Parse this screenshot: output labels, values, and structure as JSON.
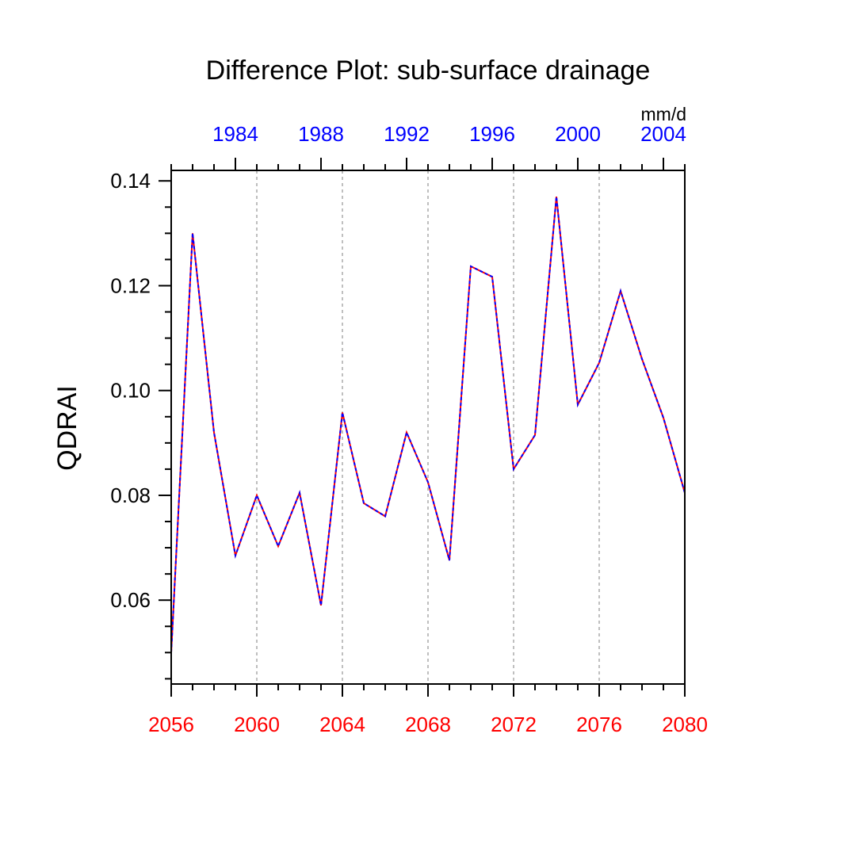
{
  "chart_data": {
    "type": "line",
    "title": "Difference Plot: sub-surface drainage",
    "ylabel": "QDRAI",
    "units": "mm/d",
    "bottom_axis": {
      "ticks": [
        2056,
        2060,
        2064,
        2068,
        2072,
        2076,
        2080
      ],
      "range": [
        2056,
        2080
      ],
      "color": "#ff0000"
    },
    "top_axis": {
      "ticks": [
        1984,
        1988,
        1992,
        1996,
        2000,
        2004
      ],
      "range": [
        1981,
        2005
      ],
      "color": "#0000ff"
    },
    "y_axis": {
      "ticks": [
        "0.06",
        "0.08",
        "0.10",
        "0.12",
        "0.14"
      ],
      "tick_values": [
        0.06,
        0.08,
        0.1,
        0.12,
        0.14
      ],
      "range": [
        0.044,
        0.142
      ]
    },
    "grid": "dashed vertical lines at bottom major ticks",
    "series": [
      {
        "color": "#ff0000",
        "x": [
          2056,
          2057,
          2058,
          2059,
          2060,
          2061,
          2062,
          2063,
          2064,
          2065,
          2066,
          2067,
          2068,
          2069,
          2070,
          2071,
          2072,
          2073,
          2074,
          2075,
          2076,
          2077,
          2078,
          2079,
          2080
        ],
        "values": [
          0.05,
          0.13,
          0.092,
          0.0685,
          0.08,
          0.0703,
          0.0805,
          0.059,
          0.0958,
          0.0785,
          0.076,
          0.092,
          0.0825,
          0.0676,
          0.1237,
          0.1217,
          0.085,
          0.0915,
          0.137,
          0.0973,
          0.1053,
          0.119,
          0.106,
          0.0948,
          0.0805
        ]
      },
      {
        "color": "#0000ff",
        "x": [
          1981,
          1982,
          1983,
          1984,
          1985,
          1986,
          1987,
          1988,
          1989,
          1990,
          1991,
          1992,
          1993,
          1994,
          1995,
          1996,
          1997,
          1998,
          1999,
          2000,
          2001,
          2002,
          2003,
          2004,
          2005
        ],
        "values": [
          0.05,
          0.13,
          0.092,
          0.0685,
          0.08,
          0.0703,
          0.0805,
          0.059,
          0.0958,
          0.0785,
          0.076,
          0.092,
          0.0825,
          0.0676,
          0.1237,
          0.1217,
          0.085,
          0.0915,
          0.137,
          0.0973,
          0.1053,
          0.119,
          0.106,
          0.0948,
          0.0805
        ]
      }
    ]
  }
}
